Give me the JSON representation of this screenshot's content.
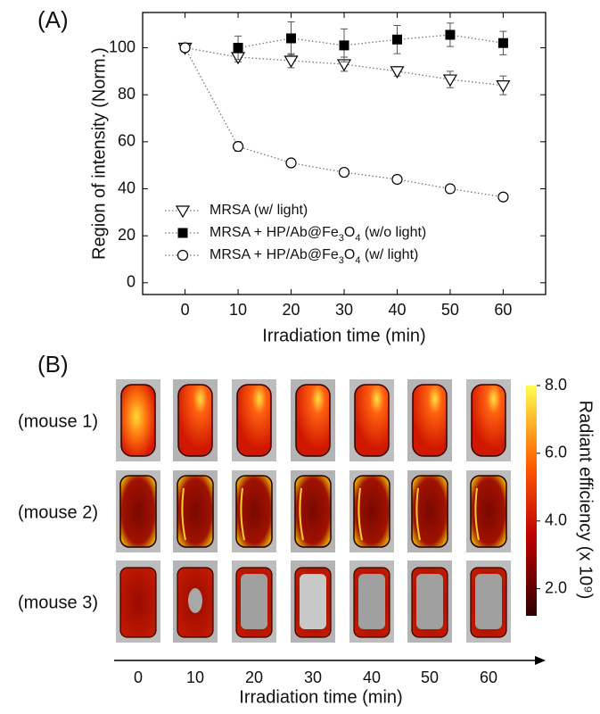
{
  "panel_labels": [
    "(A)",
    "(B)"
  ],
  "chart_data": {
    "type": "line",
    "x_label": "Irradiation time (min)",
    "y_label": "Region of intensity (Norm.)",
    "x": [
      0,
      10,
      20,
      30,
      40,
      50,
      60
    ],
    "xlim": [
      -8,
      68
    ],
    "xticks": [
      0,
      10,
      20,
      30,
      40,
      50,
      60
    ],
    "ylim": [
      -5,
      115
    ],
    "yticks": [
      0,
      20,
      40,
      60,
      80,
      100
    ],
    "legend": "lower left",
    "series": [
      {
        "name": "MRSA (w/ light)",
        "color": "#000000",
        "marker": "triangle-down",
        "values": [
          100,
          96,
          94.5,
          93,
          90,
          86.5,
          84
        ],
        "errors": [
          1,
          2,
          3,
          3,
          2,
          3.5,
          4
        ]
      },
      {
        "name": "MRSA + HP/Ab@Fe3O4 (w/o light)",
        "color": "#000000",
        "marker": "square-filled",
        "values": [
          null,
          100,
          104,
          101,
          103.5,
          105.5,
          102
        ],
        "errors": [
          null,
          5,
          7,
          7,
          6,
          5,
          5
        ]
      },
      {
        "name": "MRSA + HP/Ab@Fe3O4 (w/ light)",
        "color": "#000000",
        "marker": "circle",
        "values": [
          100,
          58,
          51,
          47,
          44,
          40,
          36.5
        ],
        "errors": [
          1,
          2,
          1,
          1,
          1,
          1,
          1
        ]
      }
    ]
  },
  "panel_b": {
    "rows": [
      "(mouse 1)",
      "(mouse 2)",
      "(mouse 3)"
    ],
    "columns": [
      "0",
      "10",
      "20",
      "30",
      "40",
      "50",
      "60"
    ],
    "x_label": "Irradiation time (min)",
    "colorbar": {
      "label": "Radiant efficiency (x 10⁹)",
      "lim": [
        1.2,
        8
      ],
      "ticks": [
        {
          "value": 2,
          "label": "2.0"
        },
        {
          "value": 4,
          "label": "4.0"
        },
        {
          "value": 6,
          "label": "6.0"
        },
        {
          "value": 8,
          "label": "8.0"
        }
      ]
    }
  }
}
